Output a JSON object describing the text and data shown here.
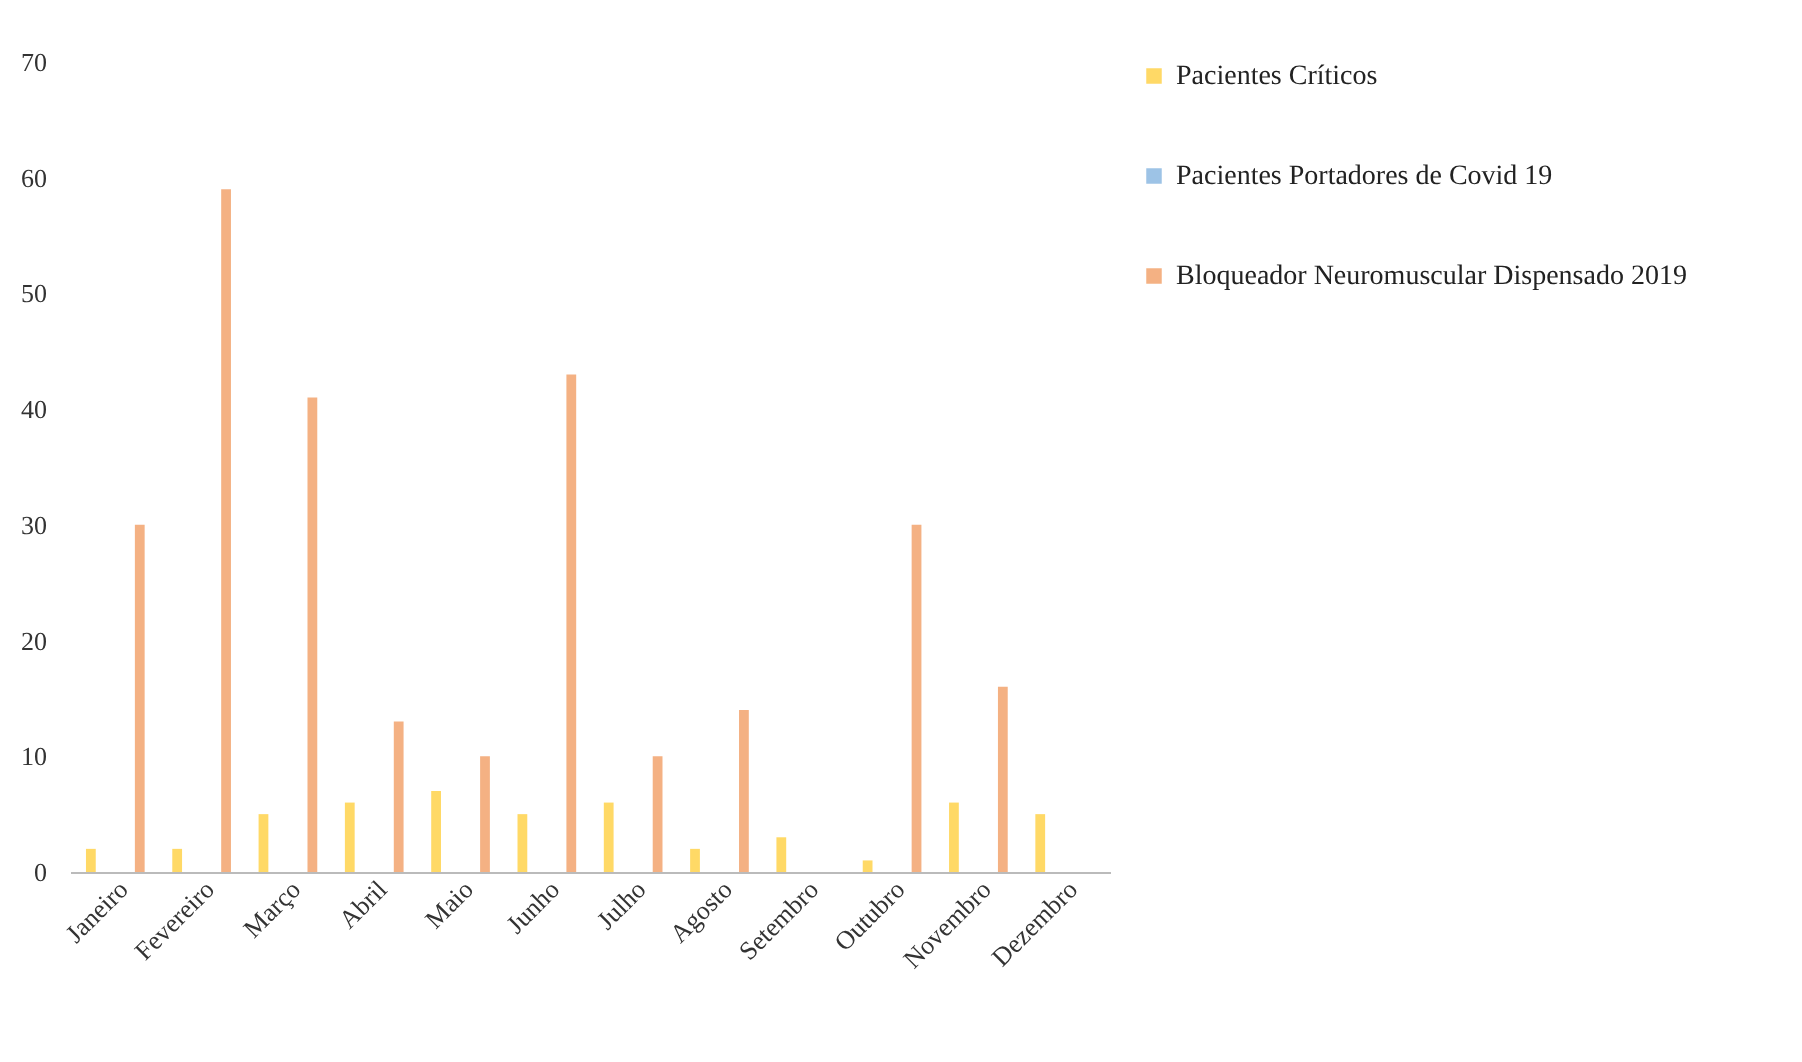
{
  "chart_data": {
    "type": "bar",
    "categories": [
      "Janeiro",
      "Fevereiro",
      "Março",
      "Abril",
      "Maio",
      "Junho",
      "Julho",
      "Agosto",
      "Setembro",
      "Outubro",
      "Novembro",
      "Dezembro"
    ],
    "series": [
      {
        "name": "Pacientes Críticos",
        "color": "#ffd966",
        "values": [
          2,
          2,
          5,
          6,
          7,
          5,
          6,
          2,
          3,
          1,
          6,
          5
        ]
      },
      {
        "name": "Pacientes Portadores de Covid 19",
        "color": "#9dc3e6",
        "values": [
          0,
          0,
          0,
          0,
          0,
          0,
          0,
          0,
          0,
          0,
          0,
          0
        ]
      },
      {
        "name": "Bloqueador Neuromuscular Dispensado 2019",
        "color": "#f4b183",
        "values": [
          30,
          59,
          41,
          13,
          10,
          43,
          10,
          14,
          0,
          30,
          16,
          0
        ]
      }
    ],
    "ylim": [
      0,
      70
    ],
    "yticks": [
      0,
      10,
      20,
      30,
      40,
      50,
      60,
      70
    ],
    "grid": false,
    "legend": "right"
  }
}
